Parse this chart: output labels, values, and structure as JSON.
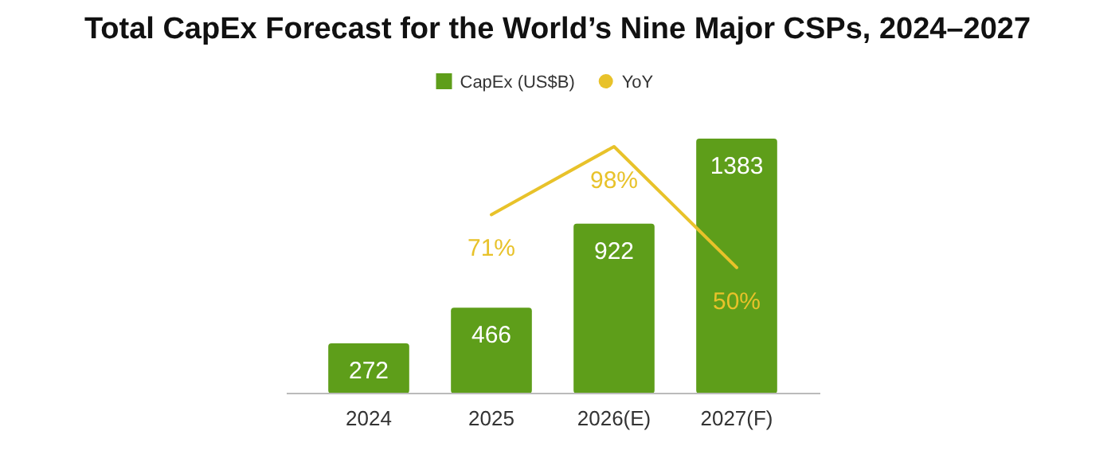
{
  "chart_data": {
    "type": "bar",
    "title": "Total CapEx Forecast for the World’s Nine Major CSPs, 2024–2027",
    "categories": [
      "2024",
      "2025",
      "2026(E)",
      "2027(F)"
    ],
    "series": [
      {
        "name": "CapEx (US$B)",
        "color": "#5e9e1a",
        "values": [
          272,
          466,
          922,
          1383
        ]
      },
      {
        "name": "YoY",
        "type": "line",
        "axis": "y2",
        "color": "#e8c22a",
        "values": [
          null,
          71,
          98,
          50
        ],
        "value_labels": [
          null,
          "71%",
          "98%",
          "50%"
        ]
      }
    ],
    "data_labels": true,
    "legend": "top",
    "marker": "none",
    "tick_labels": "x"
  }
}
